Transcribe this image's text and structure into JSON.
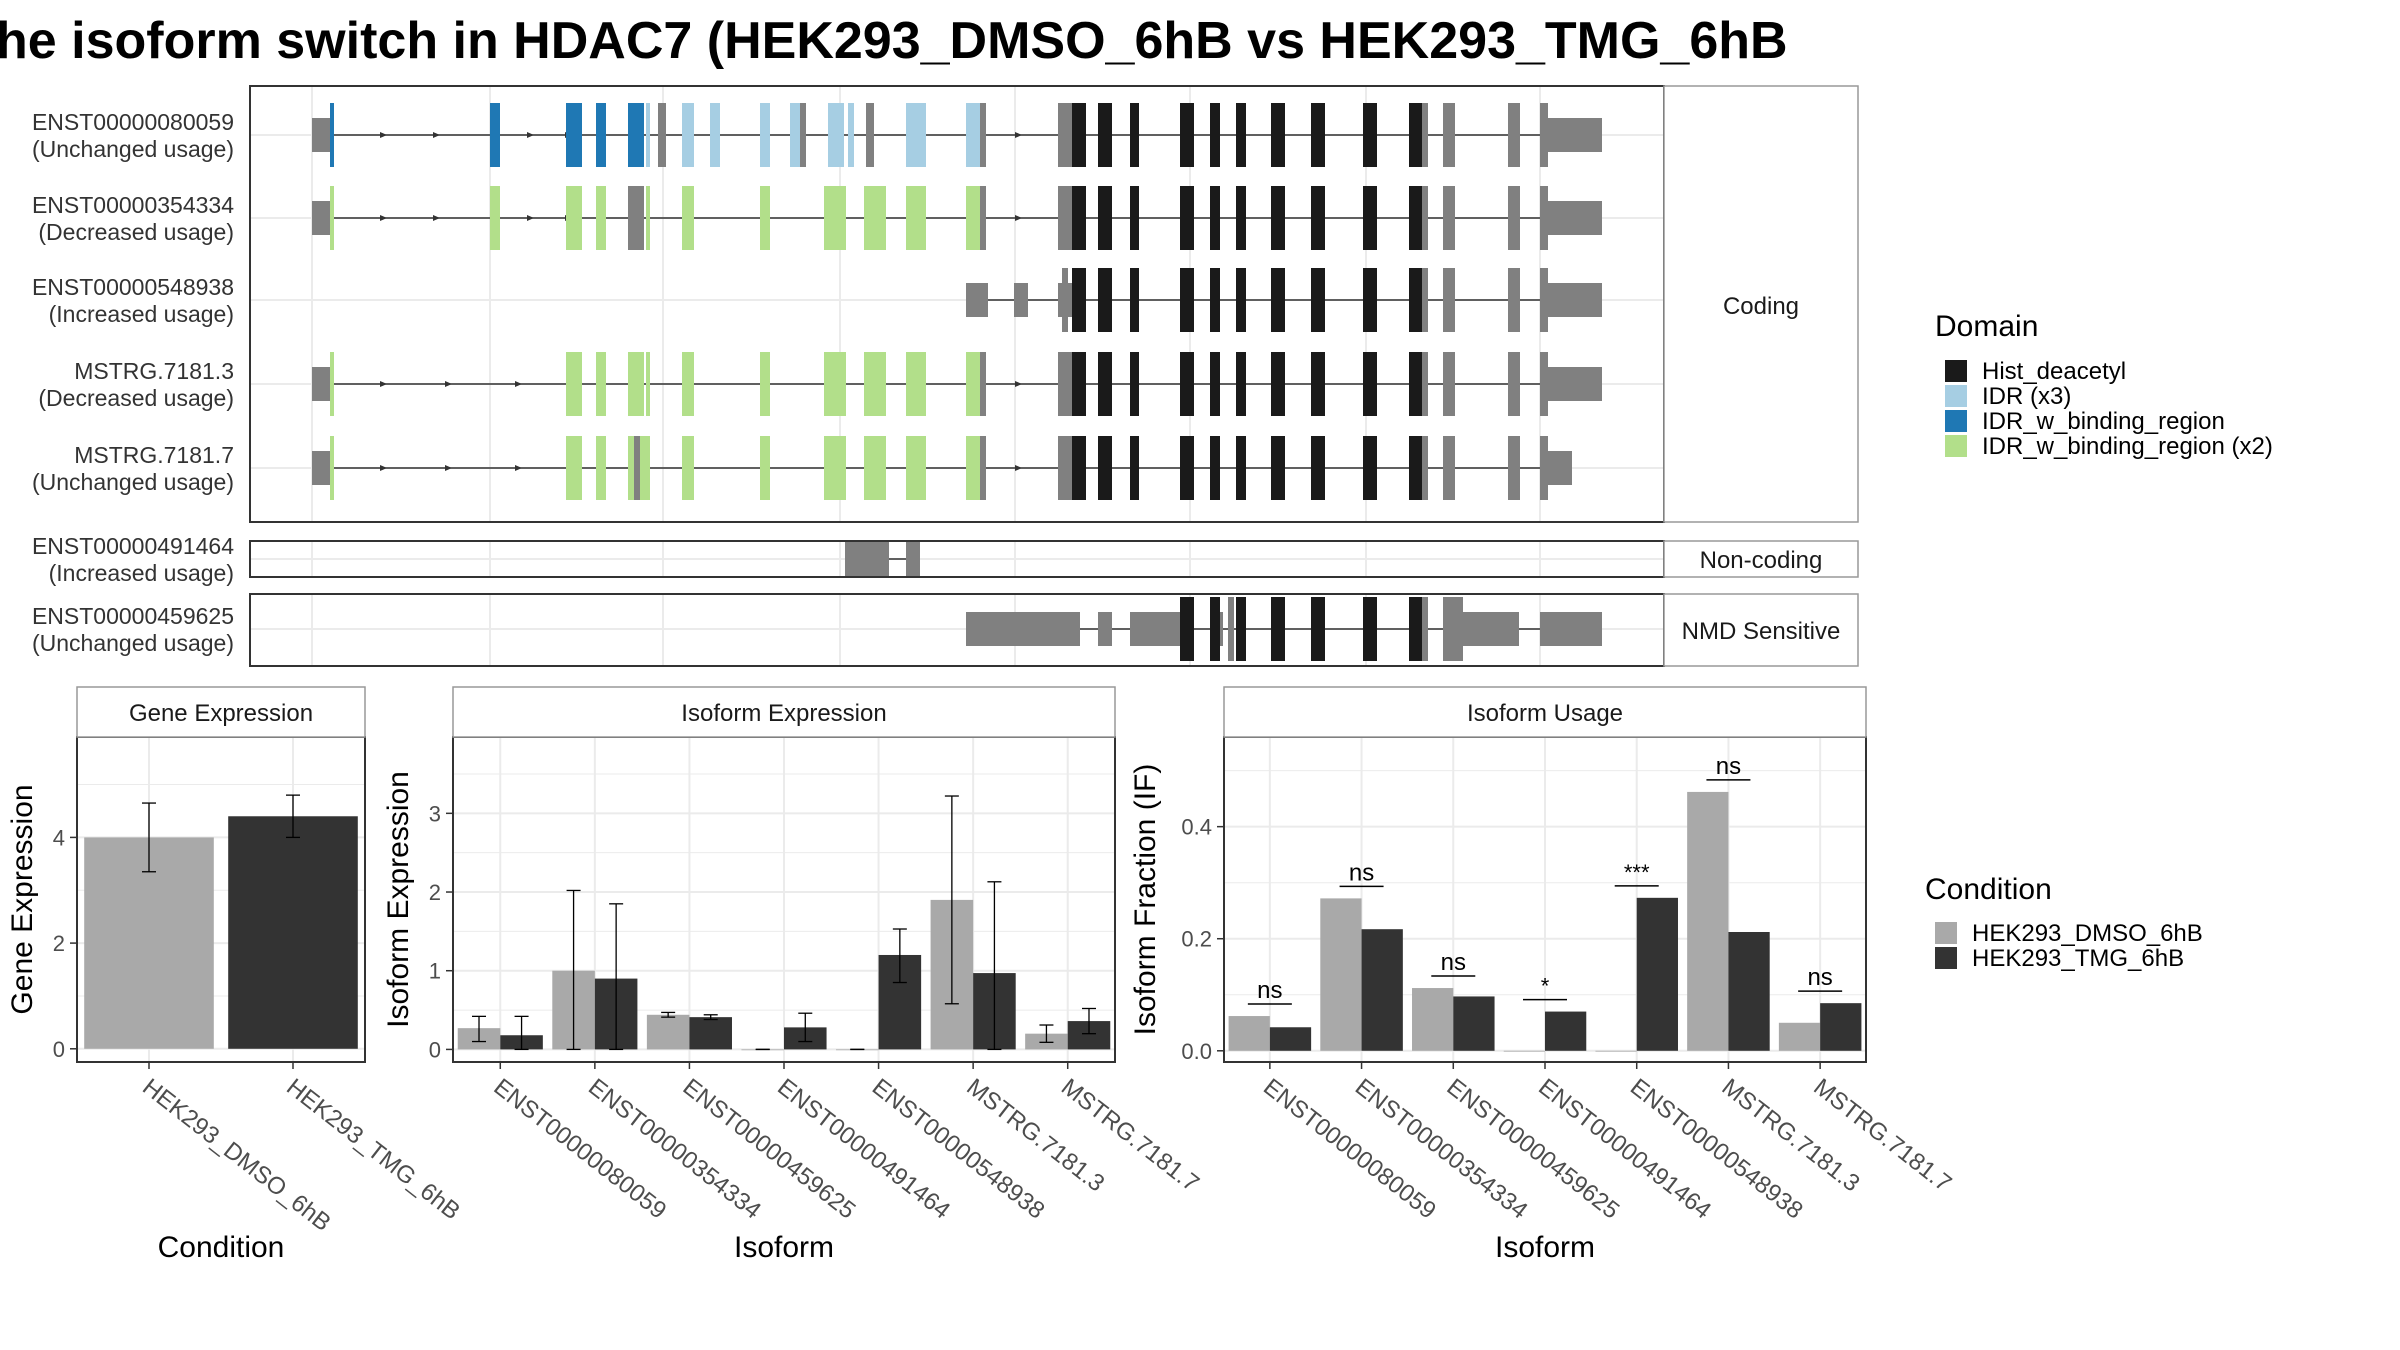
{
  "title": "he isoform switch in HDAC7 (HEK293_DMSO_6hB vs HEK293_TMG_6hB",
  "colors": {
    "hist_deacetyl": "#1a1a1a",
    "idr": "#a6cee3",
    "idr_w_binding_region": "#1f78b4",
    "idr_w_binding_region_x2": "#b2df8a",
    "utr": "#808080",
    "dmso": "#a9a9a9",
    "tmg": "#333333",
    "panel_strip": "#ffffff",
    "grid": "#ebebeb"
  },
  "structure": {
    "groups": [
      "Coding",
      "Non-coding",
      "NMD Sensitive"
    ],
    "transcripts": [
      {
        "id": "ENST00000080059",
        "usage": "(Unchanged usage)",
        "group": "Coding"
      },
      {
        "id": "ENST00000354334",
        "usage": "(Decreased usage)",
        "group": "Coding"
      },
      {
        "id": "ENST00000548938",
        "usage": "(Increased usage)",
        "group": "Coding"
      },
      {
        "id": "MSTRG.7181.3",
        "usage": "(Decreased usage)",
        "group": "Coding"
      },
      {
        "id": "MSTRG.7181.7",
        "usage": "(Unchanged usage)",
        "group": "Coding"
      },
      {
        "id": "ENST00000491464",
        "usage": "(Increased usage)",
        "group": "Non-coding"
      },
      {
        "id": "ENST00000459625",
        "usage": "(Unchanged usage)",
        "group": "NMD Sensitive"
      }
    ]
  },
  "legend_domain": {
    "title": "Domain",
    "items": [
      {
        "label": "Hist_deacetyl",
        "color": "#1a1a1a"
      },
      {
        "label": "IDR (x3)",
        "color": "#a6cee3"
      },
      {
        "label": "IDR_w_binding_region",
        "color": "#1f78b4"
      },
      {
        "label": "IDR_w_binding_region (x2)",
        "color": "#b2df8a"
      }
    ]
  },
  "legend_condition": {
    "title": "Condition",
    "items": [
      {
        "label": "HEK293_DMSO_6hB",
        "color": "#a9a9a9"
      },
      {
        "label": "HEK293_TMG_6hB",
        "color": "#333333"
      }
    ]
  },
  "chart_data": [
    {
      "type": "bar",
      "title": "Gene Expression",
      "xlabel": "Condition",
      "ylabel": "Gene Expression",
      "categories": [
        "HEK293_DMSO_6hB",
        "HEK293_TMG_6hB"
      ],
      "values": [
        4.0,
        4.4
      ],
      "err_low": [
        3.35,
        4.0
      ],
      "err_high": [
        4.65,
        4.8
      ],
      "ylim": [
        -0.25,
        5.9
      ],
      "yticks": [
        0,
        2,
        4
      ],
      "grid": true
    },
    {
      "type": "bar",
      "title": "Isoform Expression",
      "xlabel": "Isoform",
      "ylabel": "Isoform Expression",
      "categories": [
        "ENST00000080059",
        "ENST00000354334",
        "ENST00000459625",
        "ENST00000491464",
        "ENST00000548938",
        "MSTRG.7181.3",
        "MSTRG.7181.7"
      ],
      "series": [
        {
          "name": "HEK293_DMSO_6hB",
          "values": [
            0.27,
            1.0,
            0.44,
            0.0,
            0.0,
            1.9,
            0.2
          ],
          "err_low": [
            0.1,
            0.0,
            0.41,
            0.0,
            0.0,
            0.58,
            0.09
          ],
          "err_high": [
            0.42,
            2.02,
            0.47,
            0.0,
            0.0,
            3.22,
            0.31
          ]
        },
        {
          "name": "HEK293_TMG_6hB",
          "values": [
            0.18,
            0.9,
            0.41,
            0.28,
            1.2,
            0.97,
            0.36
          ],
          "err_low": [
            0.0,
            0.0,
            0.38,
            0.1,
            0.85,
            0.0,
            0.2
          ],
          "err_high": [
            0.42,
            1.85,
            0.44,
            0.46,
            1.53,
            2.13,
            0.52
          ]
        }
      ],
      "ylim": [
        -0.16,
        3.97
      ],
      "yticks": [
        0,
        1,
        2,
        3
      ],
      "grid": true
    },
    {
      "type": "bar",
      "title": "Isoform Usage",
      "xlabel": "Isoform",
      "ylabel": "Isoform Fraction (IF)",
      "categories": [
        "ENST00000080059",
        "ENST00000354334",
        "ENST00000459625",
        "ENST00000491464",
        "ENST00000548938",
        "MSTRG.7181.3",
        "MSTRG.7181.7"
      ],
      "series": [
        {
          "name": "HEK293_DMSO_6hB",
          "values": [
            0.062,
            0.272,
            0.112,
            0.0,
            0.0,
            0.462,
            0.05
          ]
        },
        {
          "name": "HEK293_TMG_6hB",
          "values": [
            0.042,
            0.217,
            0.097,
            0.07,
            0.273,
            0.212,
            0.085
          ]
        }
      ],
      "significance": [
        "ns",
        "ns",
        "ns",
        "*",
        "***",
        "ns",
        "ns"
      ],
      "ylim": [
        -0.02,
        0.56
      ],
      "yticks": [
        0.0,
        0.2,
        0.4
      ],
      "ytick_labels": [
        "0.0",
        "0.2",
        "0.4"
      ],
      "grid": true
    }
  ]
}
